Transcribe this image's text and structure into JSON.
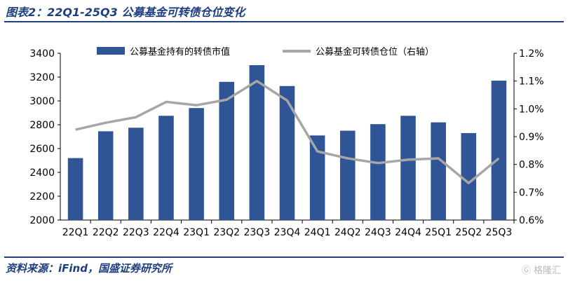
{
  "title": "图表2：22Q1-25Q3 公募基金可转债仓位变化",
  "source": "资料来源：iFind，国盛证券研究所",
  "watermark": "格隆汇",
  "colors": {
    "bar": "#2f5597",
    "line": "#a6a6a6",
    "title": "#1f3f7f"
  },
  "chart_data": {
    "type": "bar+line",
    "categories": [
      "22Q1",
      "22Q2",
      "22Q3",
      "22Q4",
      "23Q1",
      "23Q2",
      "23Q3",
      "23Q4",
      "24Q1",
      "24Q2",
      "24Q3",
      "24Q4",
      "25Q1",
      "25Q2",
      "25Q3"
    ],
    "series": [
      {
        "name": "公募基金持有的转债市值",
        "type": "bar",
        "axis": "left",
        "values": [
          2520,
          2745,
          2775,
          2875,
          2940,
          3160,
          3300,
          3125,
          2710,
          2750,
          2805,
          2875,
          2820,
          2730,
          3170
        ]
      },
      {
        "name": "公募基金可转债仓位（右轴）",
        "type": "line",
        "axis": "right",
        "values": [
          0.925,
          0.95,
          0.97,
          1.025,
          1.013,
          1.033,
          1.1,
          1.03,
          0.847,
          0.822,
          0.805,
          0.817,
          0.822,
          0.733,
          0.822
        ]
      }
    ],
    "ylim": [
      2000,
      3400
    ],
    "yticks": [
      "2000",
      "2200",
      "2400",
      "2600",
      "2800",
      "3000",
      "3200",
      "3400"
    ],
    "y2lim": [
      0.6,
      1.2
    ],
    "y2ticks": [
      "0.6%",
      "0.7%",
      "0.8%",
      "0.9%",
      "1.0%",
      "1.1%",
      "1.2%"
    ],
    "legend": "top"
  }
}
